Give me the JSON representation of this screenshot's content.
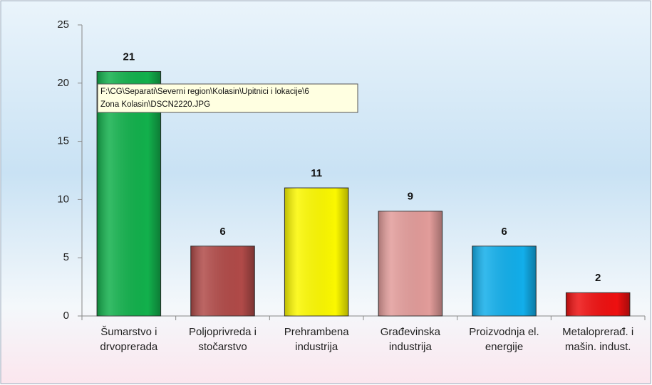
{
  "chart_data": {
    "type": "bar",
    "categories": [
      "Šumarstvo i drvoprerada",
      "Poljoprivreda i stočarstvo",
      "Prehrambena industrija",
      "Građevinska industrija",
      "Proizvodnja el. energije",
      "Metaloprerađ. i mašin. indust."
    ],
    "values": [
      21,
      6,
      11,
      9,
      6,
      2
    ],
    "colors": [
      "#12b04c",
      "#b04a48",
      "#fbf800",
      "#e29c9a",
      "#12aeea",
      "#ee1010"
    ],
    "ylim": [
      0,
      25
    ],
    "yticks": [
      0,
      5,
      10,
      15,
      20,
      25
    ],
    "grid": false,
    "tooltip": [
      "F:\\CG\\Separati\\Severni region\\Kolasin\\Upitnici i lokacije\\6",
      "Zona Kolasin\\DSCN2220.JPG"
    ]
  }
}
